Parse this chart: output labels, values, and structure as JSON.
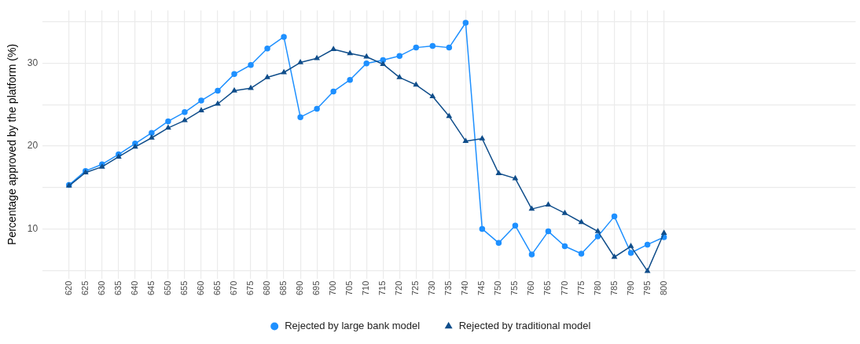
{
  "chart_data": {
    "type": "line",
    "ylabel": "Percentage approved by the platform (%)",
    "x": [
      620,
      625,
      630,
      635,
      640,
      645,
      650,
      655,
      660,
      665,
      670,
      675,
      680,
      685,
      690,
      695,
      700,
      705,
      710,
      715,
      720,
      725,
      730,
      735,
      740,
      745,
      750,
      755,
      760,
      765,
      770,
      775,
      780,
      785,
      790,
      795,
      800
    ],
    "series": [
      {
        "name": "Rejected by large bank model",
        "color": "#1e90ff",
        "marker": "circle",
        "values": [
          15.3,
          17.0,
          17.8,
          19.0,
          20.3,
          21.6,
          23.0,
          24.1,
          25.5,
          26.7,
          28.7,
          29.8,
          31.8,
          33.2,
          23.5,
          24.5,
          26.6,
          28.0,
          30.0,
          30.4,
          30.9,
          31.9,
          32.1,
          31.9,
          34.9,
          10.0,
          8.3,
          10.4,
          6.9,
          9.7,
          7.9,
          7.0,
          9.1,
          11.5,
          7.1,
          8.1,
          9.0
        ]
      },
      {
        "name": "Rejected by traditional model",
        "color": "#104e8b",
        "marker": "triangle",
        "values": [
          15.2,
          16.8,
          17.5,
          18.7,
          19.9,
          21.0,
          22.2,
          23.1,
          24.3,
          25.1,
          26.7,
          27.0,
          28.3,
          28.9,
          30.1,
          30.6,
          31.7,
          31.2,
          30.8,
          29.9,
          28.3,
          27.4,
          26.0,
          23.6,
          20.6,
          20.9,
          16.7,
          16.1,
          12.4,
          12.9,
          11.9,
          10.8,
          9.7,
          6.6,
          7.9,
          4.9,
          9.5
        ]
      }
    ],
    "xlim": [
      612,
      858
    ],
    "xticks": [
      620,
      625,
      630,
      635,
      640,
      645,
      650,
      655,
      660,
      665,
      670,
      675,
      680,
      685,
      690,
      695,
      700,
      705,
      710,
      715,
      720,
      725,
      730,
      735,
      740,
      745,
      750,
      755,
      760,
      765,
      770,
      775,
      780,
      785,
      790,
      795,
      800
    ],
    "ylim": [
      4,
      36.4
    ],
    "yticks": [
      {
        "value": 5,
        "label": null
      },
      10,
      {
        "value": 15,
        "label": null
      },
      20,
      {
        "value": 25,
        "label": null
      },
      30,
      {
        "value": 35,
        "label": null
      }
    ],
    "grid": true,
    "legend": "bottom",
    "line_style": "solid"
  }
}
